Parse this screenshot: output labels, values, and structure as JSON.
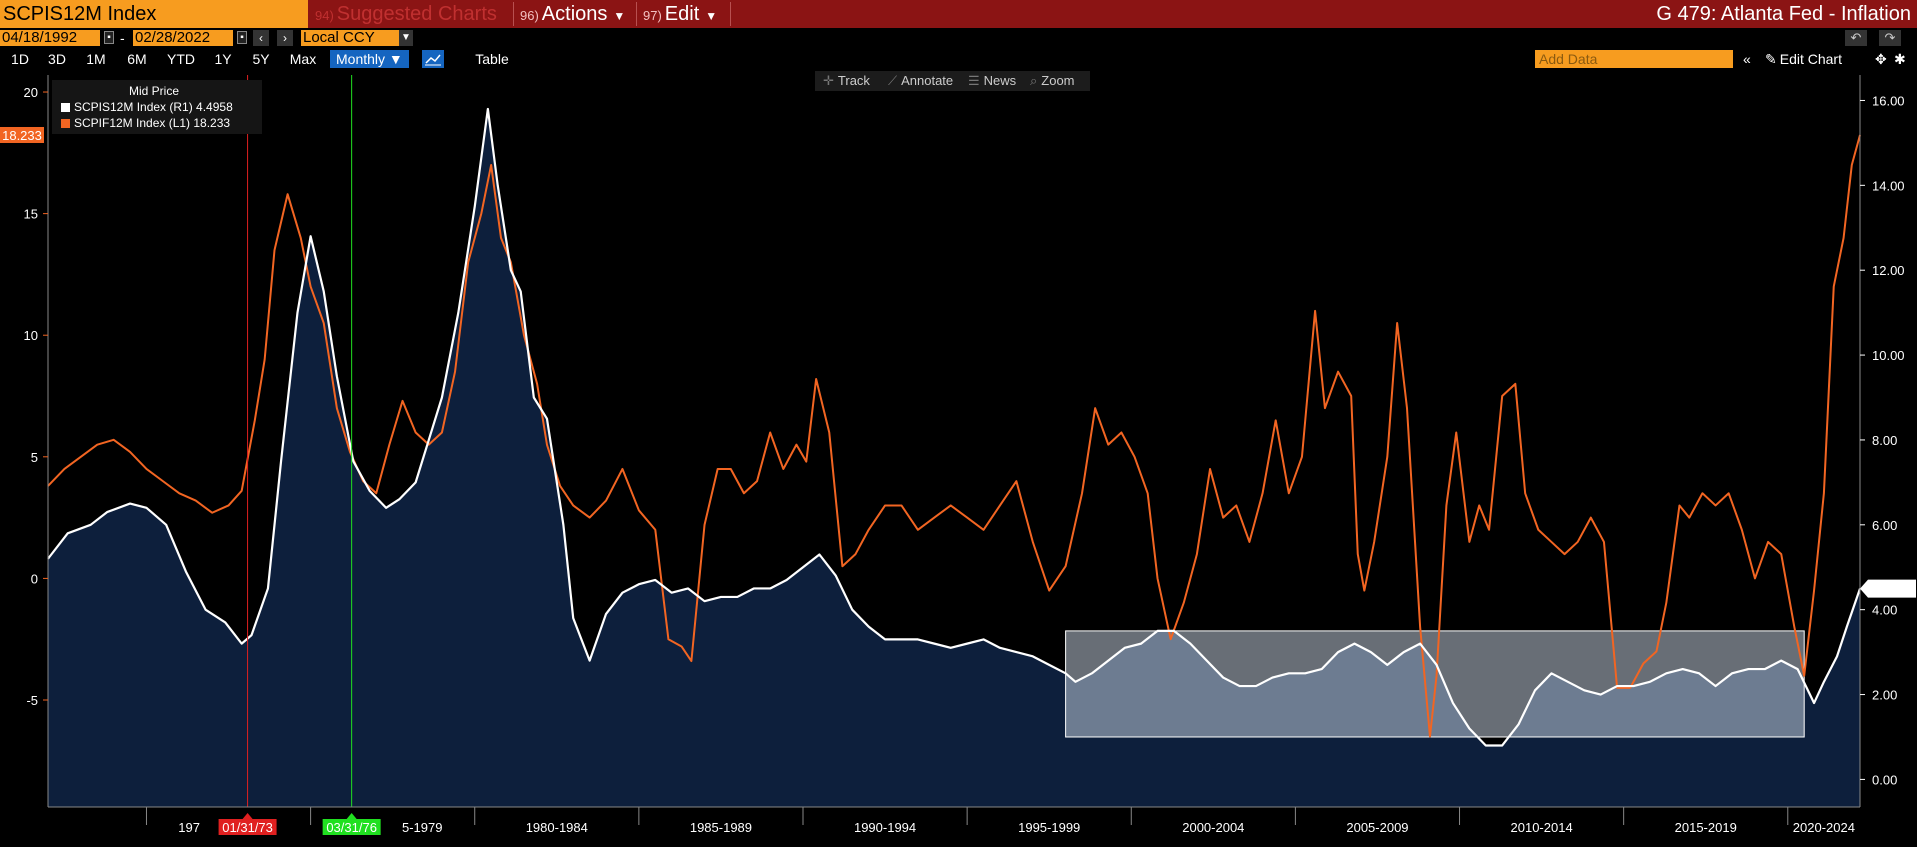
{
  "header": {
    "ticker": "SCPIS12M Index",
    "suggested": {
      "num": "94)",
      "label": "Suggested Charts"
    },
    "actions": {
      "num": "96)",
      "label": "Actions"
    },
    "edit": {
      "num": "97)",
      "label": "Edit"
    },
    "title": "G 479: Atlanta Fed - Inflation"
  },
  "dates": {
    "start": "04/18/1992",
    "dash": "-",
    "end": "02/28/2022",
    "currency": "Local CCY"
  },
  "ranges": [
    "1D",
    "3D",
    "1M",
    "6M",
    "YTD",
    "1Y",
    "5Y",
    "Max"
  ],
  "frequency": "Monthly ▼",
  "table_label": "Table",
  "add_data_placeholder": "Add Data",
  "edit_chart_label": "Edit Chart",
  "tools": [
    "Track",
    "Annotate",
    "News",
    "Zoom"
  ],
  "legend": {
    "heading": "Mid Price",
    "items": [
      {
        "label": "SCPIS12M Index  (R1)  4.4958",
        "color": "#ffffff"
      },
      {
        "label": "SCPIF12M Index  (L1)  18.233",
        "color": "#f26522"
      }
    ]
  },
  "colors": {
    "sticky": "#ffffff",
    "flex": "#f26522",
    "area": "#0d1f3c",
    "accent": "#f79c1f",
    "header": "#8b1414"
  },
  "chart_data": {
    "type": "line",
    "x_range": [
      1967.0,
      2022.2
    ],
    "left_axis": {
      "ticks": [
        20,
        15,
        10,
        5,
        0,
        -5
      ],
      "range": [
        -9.4,
        20.7
      ]
    },
    "right_axis": {
      "ticks": [
        "16.00",
        "14.00",
        "12.00",
        "10.00",
        "8.00",
        "6.00",
        "4.00",
        "2.00",
        "0.00"
      ],
      "range": [
        -0.65,
        16.6
      ]
    },
    "x_labels": [
      "197",
      "5-1979",
      "1980-1984",
      "1985-1989",
      "1990-1994",
      "1995-1999",
      "2000-2004",
      "2005-2009",
      "2010-2014",
      "2015-2019",
      "2020-2024"
    ],
    "markers": [
      {
        "label": "01/31/73",
        "x": 1973.08,
        "color": "#e02020"
      },
      {
        "label": "03/31/76",
        "x": 1976.25,
        "color": "#20e020"
      }
    ],
    "last_values": {
      "flex": "18.233",
      "sticky": "4.4958"
    },
    "highlight": {
      "x": [
        1998.0,
        2020.5
      ],
      "right_y": [
        1.0,
        3.5
      ]
    },
    "series": [
      {
        "name": "SCPIS12M Index",
        "axis": "right",
        "style": "area",
        "points": [
          [
            1967.0,
            5.2
          ],
          [
            1967.6,
            5.8
          ],
          [
            1968.3,
            6.0
          ],
          [
            1968.8,
            6.3
          ],
          [
            1969.5,
            6.5
          ],
          [
            1970.0,
            6.4
          ],
          [
            1970.6,
            6.0
          ],
          [
            1971.2,
            4.9
          ],
          [
            1971.8,
            4.0
          ],
          [
            1972.4,
            3.7
          ],
          [
            1972.9,
            3.2
          ],
          [
            1973.2,
            3.4
          ],
          [
            1973.7,
            4.5
          ],
          [
            1974.1,
            7.5
          ],
          [
            1974.6,
            11.0
          ],
          [
            1975.0,
            12.8
          ],
          [
            1975.4,
            11.5
          ],
          [
            1975.8,
            9.5
          ],
          [
            1976.3,
            7.5
          ],
          [
            1976.8,
            6.8
          ],
          [
            1977.3,
            6.4
          ],
          [
            1977.7,
            6.6
          ],
          [
            1978.2,
            7.0
          ],
          [
            1978.6,
            8.0
          ],
          [
            1979.0,
            9.0
          ],
          [
            1979.5,
            11.0
          ],
          [
            1980.0,
            13.5
          ],
          [
            1980.4,
            15.8
          ],
          [
            1980.7,
            14.0
          ],
          [
            1981.1,
            12.0
          ],
          [
            1981.4,
            11.5
          ],
          [
            1981.8,
            9.0
          ],
          [
            1982.2,
            8.5
          ],
          [
            1982.7,
            6.0
          ],
          [
            1983.0,
            3.8
          ],
          [
            1983.5,
            2.8
          ],
          [
            1984.0,
            3.9
          ],
          [
            1984.5,
            4.4
          ],
          [
            1985.0,
            4.6
          ],
          [
            1985.5,
            4.7
          ],
          [
            1986.0,
            4.4
          ],
          [
            1986.5,
            4.5
          ],
          [
            1987.0,
            4.2
          ],
          [
            1987.5,
            4.3
          ],
          [
            1988.0,
            4.3
          ],
          [
            1988.5,
            4.5
          ],
          [
            1989.0,
            4.5
          ],
          [
            1989.5,
            4.7
          ],
          [
            1990.0,
            5.0
          ],
          [
            1990.5,
            5.3
          ],
          [
            1991.0,
            4.8
          ],
          [
            1991.5,
            4.0
          ],
          [
            1992.0,
            3.6
          ],
          [
            1992.5,
            3.3
          ],
          [
            1993.0,
            3.3
          ],
          [
            1993.5,
            3.3
          ],
          [
            1994.0,
            3.2
          ],
          [
            1994.5,
            3.1
          ],
          [
            1995.0,
            3.2
          ],
          [
            1995.5,
            3.3
          ],
          [
            1996.0,
            3.1
          ],
          [
            1996.5,
            3.0
          ],
          [
            1997.0,
            2.9
          ],
          [
            1997.5,
            2.7
          ],
          [
            1998.0,
            2.5
          ],
          [
            1998.3,
            2.3
          ],
          [
            1998.8,
            2.5
          ],
          [
            1999.3,
            2.8
          ],
          [
            1999.8,
            3.1
          ],
          [
            2000.3,
            3.2
          ],
          [
            2000.8,
            3.5
          ],
          [
            2001.3,
            3.5
          ],
          [
            2001.8,
            3.2
          ],
          [
            2002.3,
            2.8
          ],
          [
            2002.8,
            2.4
          ],
          [
            2003.3,
            2.2
          ],
          [
            2003.8,
            2.2
          ],
          [
            2004.3,
            2.4
          ],
          [
            2004.8,
            2.5
          ],
          [
            2005.3,
            2.5
          ],
          [
            2005.8,
            2.6
          ],
          [
            2006.3,
            3.0
          ],
          [
            2006.8,
            3.2
          ],
          [
            2007.3,
            3.0
          ],
          [
            2007.8,
            2.7
          ],
          [
            2008.3,
            3.0
          ],
          [
            2008.8,
            3.2
          ],
          [
            2009.3,
            2.7
          ],
          [
            2009.8,
            1.8
          ],
          [
            2010.3,
            1.2
          ],
          [
            2010.8,
            0.8
          ],
          [
            2011.3,
            0.8
          ],
          [
            2011.8,
            1.3
          ],
          [
            2012.3,
            2.1
          ],
          [
            2012.8,
            2.5
          ],
          [
            2013.3,
            2.3
          ],
          [
            2013.8,
            2.1
          ],
          [
            2014.3,
            2.0
          ],
          [
            2014.8,
            2.2
          ],
          [
            2015.3,
            2.2
          ],
          [
            2015.8,
            2.3
          ],
          [
            2016.3,
            2.5
          ],
          [
            2016.8,
            2.6
          ],
          [
            2017.3,
            2.5
          ],
          [
            2017.8,
            2.2
          ],
          [
            2018.3,
            2.5
          ],
          [
            2018.8,
            2.6
          ],
          [
            2019.3,
            2.6
          ],
          [
            2019.8,
            2.8
          ],
          [
            2020.3,
            2.6
          ],
          [
            2020.8,
            1.8
          ],
          [
            2021.1,
            2.3
          ],
          [
            2021.5,
            2.9
          ],
          [
            2021.8,
            3.6
          ],
          [
            2022.2,
            4.4958
          ]
        ]
      },
      {
        "name": "SCPIF12M Index",
        "axis": "left",
        "style": "line",
        "points": [
          [
            1967.0,
            3.8
          ],
          [
            1967.5,
            4.5
          ],
          [
            1968.0,
            5.0
          ],
          [
            1968.5,
            5.5
          ],
          [
            1969.0,
            5.7
          ],
          [
            1969.5,
            5.2
          ],
          [
            1970.0,
            4.5
          ],
          [
            1970.5,
            4.0
          ],
          [
            1971.0,
            3.5
          ],
          [
            1971.5,
            3.2
          ],
          [
            1972.0,
            2.7
          ],
          [
            1972.5,
            3.0
          ],
          [
            1972.9,
            3.6
          ],
          [
            1973.3,
            6.5
          ],
          [
            1973.6,
            9.0
          ],
          [
            1973.9,
            13.5
          ],
          [
            1974.3,
            15.8
          ],
          [
            1974.7,
            14.0
          ],
          [
            1975.0,
            12.0
          ],
          [
            1975.4,
            10.5
          ],
          [
            1975.8,
            7.0
          ],
          [
            1976.2,
            5.2
          ],
          [
            1976.6,
            4.0
          ],
          [
            1977.0,
            3.5
          ],
          [
            1977.4,
            5.5
          ],
          [
            1977.8,
            7.3
          ],
          [
            1978.2,
            6.0
          ],
          [
            1978.6,
            5.5
          ],
          [
            1979.0,
            6.0
          ],
          [
            1979.4,
            8.5
          ],
          [
            1979.8,
            13.0
          ],
          [
            1980.2,
            15.0
          ],
          [
            1980.5,
            17.0
          ],
          [
            1980.8,
            14.0
          ],
          [
            1981.1,
            13.0
          ],
          [
            1981.5,
            10.0
          ],
          [
            1981.9,
            8.0
          ],
          [
            1982.2,
            5.5
          ],
          [
            1982.6,
            3.8
          ],
          [
            1983.0,
            3.0
          ],
          [
            1983.5,
            2.5
          ],
          [
            1984.0,
            3.2
          ],
          [
            1984.5,
            4.5
          ],
          [
            1985.0,
            2.8
          ],
          [
            1985.5,
            2.0
          ],
          [
            1985.9,
            -2.5
          ],
          [
            1986.3,
            -2.8
          ],
          [
            1986.6,
            -3.4
          ],
          [
            1987.0,
            2.2
          ],
          [
            1987.4,
            4.5
          ],
          [
            1987.8,
            4.5
          ],
          [
            1988.2,
            3.5
          ],
          [
            1988.6,
            4.0
          ],
          [
            1989.0,
            6.0
          ],
          [
            1989.4,
            4.5
          ],
          [
            1989.8,
            5.5
          ],
          [
            1990.1,
            4.8
          ],
          [
            1990.4,
            8.2
          ],
          [
            1990.8,
            6.0
          ],
          [
            1991.2,
            0.5
          ],
          [
            1991.6,
            1.0
          ],
          [
            1992.0,
            2.0
          ],
          [
            1992.5,
            3.0
          ],
          [
            1993.0,
            3.0
          ],
          [
            1993.5,
            2.0
          ],
          [
            1994.0,
            2.5
          ],
          [
            1994.5,
            3.0
          ],
          [
            1995.0,
            2.5
          ],
          [
            1995.5,
            2.0
          ],
          [
            1996.0,
            3.0
          ],
          [
            1996.5,
            4.0
          ],
          [
            1997.0,
            1.5
          ],
          [
            1997.5,
            -0.5
          ],
          [
            1998.0,
            0.5
          ],
          [
            1998.5,
            3.5
          ],
          [
            1998.9,
            7.0
          ],
          [
            1999.3,
            5.5
          ],
          [
            1999.7,
            6.0
          ],
          [
            2000.1,
            5.0
          ],
          [
            2000.5,
            3.5
          ],
          [
            2000.8,
            0.0
          ],
          [
            2001.2,
            -2.5
          ],
          [
            2001.6,
            -1.0
          ],
          [
            2002.0,
            1.0
          ],
          [
            2002.4,
            4.5
          ],
          [
            2002.8,
            2.5
          ],
          [
            2003.2,
            3.0
          ],
          [
            2003.6,
            1.5
          ],
          [
            2004.0,
            3.5
          ],
          [
            2004.4,
            6.5
          ],
          [
            2004.8,
            3.5
          ],
          [
            2005.2,
            5.0
          ],
          [
            2005.6,
            11.0
          ],
          [
            2005.9,
            7.0
          ],
          [
            2006.3,
            8.5
          ],
          [
            2006.7,
            7.5
          ],
          [
            2006.9,
            1.0
          ],
          [
            2007.1,
            -0.5
          ],
          [
            2007.4,
            1.5
          ],
          [
            2007.8,
            5.0
          ],
          [
            2008.1,
            10.5
          ],
          [
            2008.4,
            7.0
          ],
          [
            2008.8,
            -2.0
          ],
          [
            2009.1,
            -6.5
          ],
          [
            2009.3,
            -4.0
          ],
          [
            2009.6,
            3.0
          ],
          [
            2009.9,
            6.0
          ],
          [
            2010.3,
            1.5
          ],
          [
            2010.6,
            3.0
          ],
          [
            2010.9,
            2.0
          ],
          [
            2011.3,
            7.5
          ],
          [
            2011.7,
            8.0
          ],
          [
            2012.0,
            3.5
          ],
          [
            2012.4,
            2.0
          ],
          [
            2012.8,
            1.5
          ],
          [
            2013.2,
            1.0
          ],
          [
            2013.6,
            1.5
          ],
          [
            2014.0,
            2.5
          ],
          [
            2014.4,
            1.5
          ],
          [
            2014.8,
            -4.5
          ],
          [
            2015.2,
            -4.5
          ],
          [
            2015.6,
            -3.5
          ],
          [
            2016.0,
            -3.0
          ],
          [
            2016.3,
            -1.0
          ],
          [
            2016.7,
            3.0
          ],
          [
            2017.0,
            2.5
          ],
          [
            2017.4,
            3.5
          ],
          [
            2017.8,
            3.0
          ],
          [
            2018.2,
            3.5
          ],
          [
            2018.6,
            2.0
          ],
          [
            2019.0,
            0.0
          ],
          [
            2019.4,
            1.5
          ],
          [
            2019.8,
            1.0
          ],
          [
            2020.2,
            -2.0
          ],
          [
            2020.5,
            -4.0
          ],
          [
            2020.8,
            -0.5
          ],
          [
            2021.1,
            3.5
          ],
          [
            2021.4,
            12.0
          ],
          [
            2021.7,
            14.0
          ],
          [
            2021.95,
            17.0
          ],
          [
            2022.2,
            18.233
          ]
        ]
      }
    ]
  }
}
